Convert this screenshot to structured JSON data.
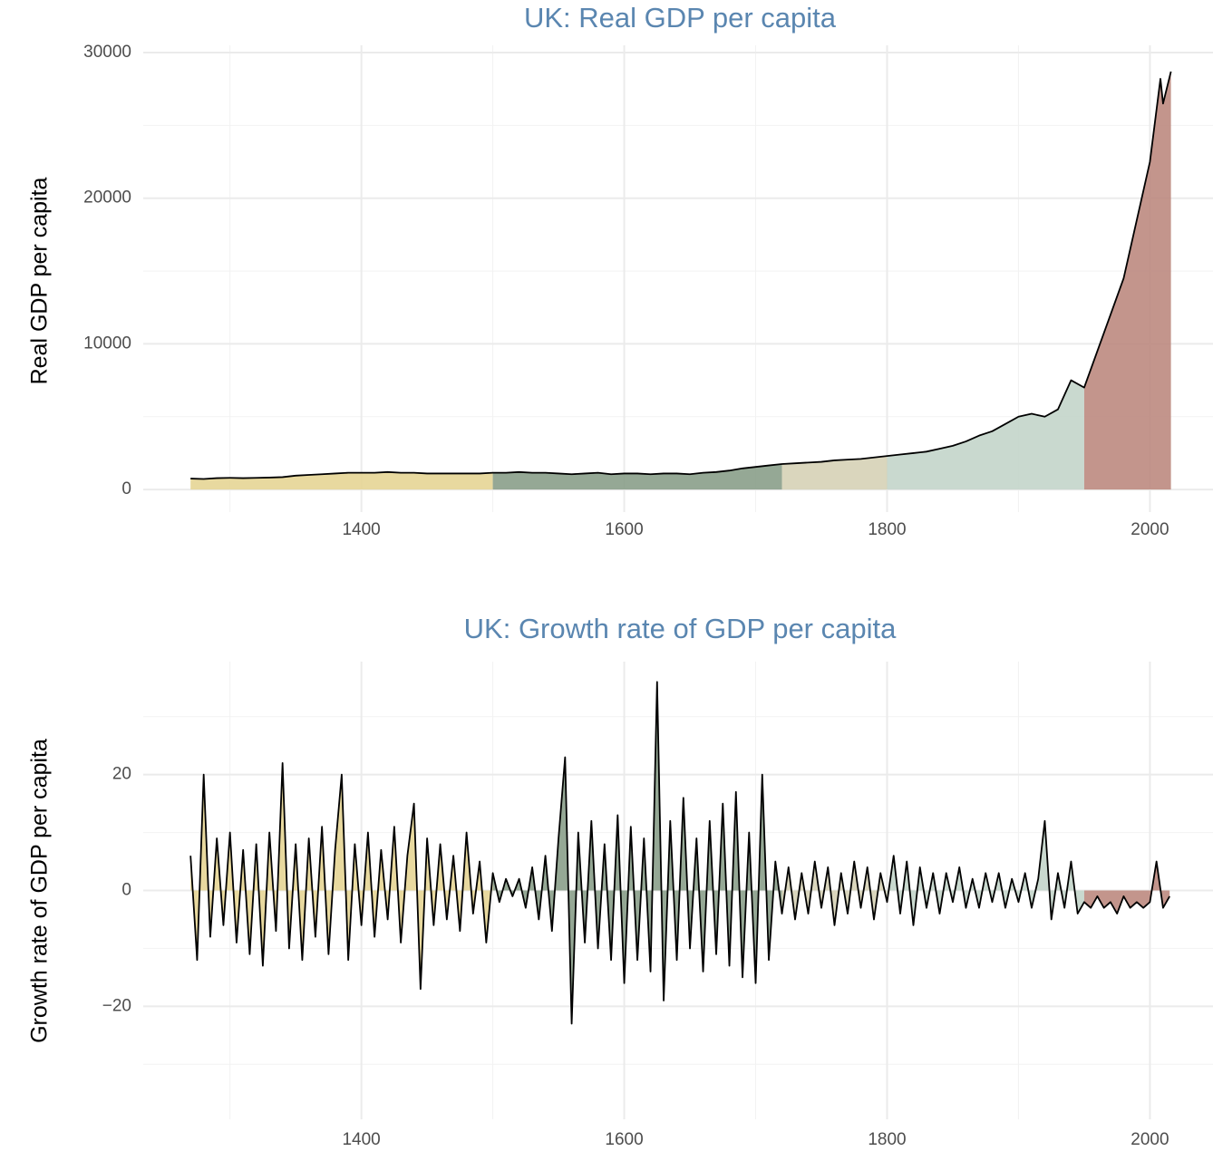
{
  "chart_data": [
    {
      "type": "area",
      "title": "UK: Real GDP per capita",
      "y_label": "Real GDP per capita",
      "x": [
        1270,
        1280,
        1290,
        1300,
        1310,
        1320,
        1330,
        1340,
        1350,
        1360,
        1370,
        1380,
        1390,
        1400,
        1410,
        1420,
        1430,
        1440,
        1450,
        1460,
        1470,
        1480,
        1490,
        1500,
        1510,
        1520,
        1530,
        1540,
        1550,
        1560,
        1570,
        1580,
        1590,
        1600,
        1610,
        1620,
        1630,
        1640,
        1650,
        1660,
        1670,
        1680,
        1690,
        1700,
        1710,
        1720,
        1730,
        1740,
        1750,
        1760,
        1770,
        1780,
        1790,
        1800,
        1810,
        1820,
        1830,
        1840,
        1850,
        1860,
        1870,
        1880,
        1890,
        1900,
        1910,
        1920,
        1930,
        1940,
        1950,
        1960,
        1970,
        1980,
        1990,
        2000,
        2008,
        2010,
        2016
      ],
      "values": [
        750,
        720,
        780,
        800,
        780,
        800,
        820,
        850,
        950,
        1000,
        1050,
        1100,
        1150,
        1150,
        1150,
        1200,
        1150,
        1150,
        1100,
        1100,
        1100,
        1100,
        1100,
        1150,
        1150,
        1200,
        1150,
        1150,
        1100,
        1050,
        1100,
        1150,
        1050,
        1100,
        1100,
        1050,
        1100,
        1100,
        1050,
        1150,
        1200,
        1300,
        1450,
        1550,
        1650,
        1750,
        1800,
        1850,
        1900,
        2000,
        2050,
        2100,
        2200,
        2300,
        2400,
        2500,
        2600,
        2800,
        3000,
        3300,
        3700,
        4000,
        4500,
        5000,
        5200,
        5000,
        5500,
        7500,
        7000,
        9500,
        12000,
        14500,
        18500,
        22500,
        28200,
        26500,
        28700
      ],
      "xlim": [
        1234,
        2048
      ],
      "ylim": [
        -1550,
        30500
      ],
      "xticks": [
        1400,
        1600,
        1800,
        2000
      ],
      "xminor": [
        1300,
        1500,
        1700,
        1900
      ],
      "yticks": [
        0,
        10000,
        20000,
        30000
      ],
      "yminor": [
        5000,
        15000,
        25000
      ],
      "line_color": "#000000",
      "periods": [
        {
          "from": 1270,
          "to": 1500,
          "color": "#e6d595"
        },
        {
          "from": 1500,
          "to": 1720,
          "color": "#8a9e8a"
        },
        {
          "from": 1720,
          "to": 1800,
          "color": "#d6d1b6"
        },
        {
          "from": 1800,
          "to": 1950,
          "color": "#c3d5ca"
        },
        {
          "from": 1950,
          "to": 2016,
          "color": "#bd8a80"
        }
      ]
    },
    {
      "type": "area",
      "title": "UK: Growth rate of GDP per capita",
      "y_label": "Growth rate of GDP per capita",
      "x": [
        1270,
        1275,
        1280,
        1285,
        1290,
        1295,
        1300,
        1305,
        1310,
        1315,
        1320,
        1325,
        1330,
        1335,
        1340,
        1345,
        1350,
        1355,
        1360,
        1365,
        1370,
        1375,
        1380,
        1385,
        1390,
        1395,
        1400,
        1405,
        1410,
        1415,
        1420,
        1425,
        1430,
        1435,
        1440,
        1445,
        1450,
        1455,
        1460,
        1465,
        1470,
        1475,
        1480,
        1485,
        1490,
        1495,
        1500,
        1505,
        1510,
        1515,
        1520,
        1525,
        1530,
        1535,
        1540,
        1545,
        1550,
        1555,
        1560,
        1565,
        1570,
        1575,
        1580,
        1585,
        1590,
        1595,
        1600,
        1605,
        1610,
        1615,
        1620,
        1625,
        1630,
        1635,
        1640,
        1645,
        1650,
        1655,
        1660,
        1665,
        1670,
        1675,
        1680,
        1685,
        1690,
        1695,
        1700,
        1705,
        1710,
        1715,
        1720,
        1725,
        1730,
        1735,
        1740,
        1745,
        1750,
        1755,
        1760,
        1765,
        1770,
        1775,
        1780,
        1785,
        1790,
        1795,
        1800,
        1805,
        1810,
        1815,
        1820,
        1825,
        1830,
        1835,
        1840,
        1845,
        1850,
        1855,
        1860,
        1865,
        1870,
        1875,
        1880,
        1885,
        1890,
        1895,
        1900,
        1905,
        1910,
        1915,
        1920,
        1925,
        1930,
        1935,
        1940,
        1945,
        1950,
        1955,
        1960,
        1965,
        1970,
        1975,
        1980,
        1985,
        1990,
        1995,
        2000,
        2005,
        2010,
        2015
      ],
      "values": [
        6,
        -12,
        20,
        -8,
        9,
        -6,
        10,
        -9,
        7,
        -11,
        8,
        -13,
        10,
        -7,
        22,
        -10,
        8,
        -12,
        9,
        -8,
        11,
        -11,
        7,
        20,
        -12,
        8,
        -6,
        10,
        -8,
        7,
        -5,
        11,
        -9,
        6,
        15,
        -17,
        9,
        -6,
        8,
        -5,
        6,
        -7,
        10,
        -4,
        5,
        -9,
        3,
        -2,
        2,
        -1,
        2,
        -3,
        4,
        -5,
        6,
        -7,
        9,
        23,
        -23,
        10,
        -9,
        12,
        -10,
        8,
        -12,
        13,
        -16,
        11,
        -12,
        9,
        -14,
        36,
        -19,
        12,
        -12,
        16,
        -10,
        9,
        -14,
        12,
        -11,
        15,
        -13,
        17,
        -15,
        10,
        -16,
        20,
        -12,
        5,
        -4,
        4,
        -5,
        3,
        -4,
        5,
        -3,
        4,
        -6,
        3,
        -4,
        5,
        -3,
        4,
        -5,
        3,
        -2,
        6,
        -4,
        5,
        -6,
        4,
        -3,
        3,
        -4,
        3,
        -2,
        4,
        -3,
        2,
        -3,
        3,
        -2,
        3,
        -3,
        2,
        -2,
        3,
        -3,
        2,
        12,
        -5,
        3,
        -3,
        5,
        -4,
        -2,
        -3,
        -1,
        -3,
        -2,
        -4,
        -1,
        -3,
        -2,
        -3,
        -2,
        5,
        -3,
        -1
      ],
      "xlim": [
        1234,
        2048
      ],
      "ylim": [
        -39.5,
        39.5
      ],
      "xticks": [
        1400,
        1600,
        1800,
        2000
      ],
      "xminor": [
        1300,
        1500,
        1700,
        1900
      ],
      "yticks": [
        {
          "value": -20,
          "label": "−20"
        },
        0,
        20
      ],
      "yminor": [
        -30,
        -10,
        10,
        30
      ],
      "line_color": "#000000",
      "periods": [
        {
          "from": 1270,
          "to": 1500,
          "color": "#e6d595"
        },
        {
          "from": 1500,
          "to": 1720,
          "color": "#8a9e8a"
        },
        {
          "from": 1720,
          "to": 1800,
          "color": "#d6d1b6"
        },
        {
          "from": 1800,
          "to": 1950,
          "color": "#c3d5ca"
        },
        {
          "from": 1950,
          "to": 2016,
          "color": "#bd8a80"
        }
      ]
    }
  ]
}
